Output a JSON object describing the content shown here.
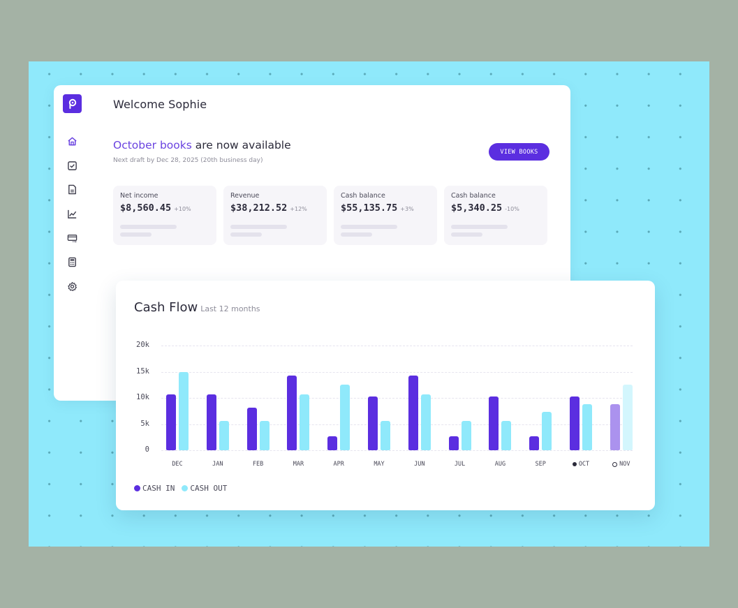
{
  "app": {
    "logo_glyph": "p",
    "brand_color": "#5b2ee0"
  },
  "sidebar": {
    "items": [
      {
        "name": "home",
        "icon": "home-icon",
        "active": true
      },
      {
        "name": "tasks",
        "icon": "checkbox-icon",
        "active": false
      },
      {
        "name": "documents",
        "icon": "document-icon",
        "active": false
      },
      {
        "name": "reports",
        "icon": "line-chart-icon",
        "active": false
      },
      {
        "name": "payments",
        "icon": "card-transfer-icon",
        "active": false
      },
      {
        "name": "calculator",
        "icon": "calculator-icon",
        "active": false
      },
      {
        "name": "settings",
        "icon": "gear-icon",
        "active": false
      }
    ]
  },
  "header": {
    "welcome": "Welcome Sophie"
  },
  "banner": {
    "title_accent": "October books",
    "title_rest": " are now available",
    "subtitle": "Next draft by Dec 28, 2025 (20th business day)",
    "button_label": "VIEW BOOKS"
  },
  "metrics": [
    {
      "label": "Net income",
      "value": "$8,560.45",
      "delta": "+10%"
    },
    {
      "label": "Revenue",
      "value": "$38,212.52",
      "delta": "+12%"
    },
    {
      "label": "Cash balance",
      "value": "$55,135.75",
      "delta": "+3%"
    },
    {
      "label": "Cash balance",
      "value": "$5,340.25",
      "delta": "-10%"
    }
  ],
  "cashflow": {
    "title": "Cash Flow",
    "subtitle": "Last 12 months",
    "legend": [
      {
        "label": "CASH IN",
        "color": "#5b2ee0"
      },
      {
        "label": "CASH OUT",
        "color": "#8fe9fb"
      }
    ]
  },
  "chart_data": {
    "type": "bar",
    "title": "Cash Flow",
    "subtitle": "Last 12 months",
    "xlabel": "",
    "ylabel": "",
    "categories": [
      "DEC",
      "JAN",
      "FEB",
      "MAR",
      "APR",
      "MAY",
      "JUN",
      "JUL",
      "AUG",
      "SEP",
      "OCT",
      "NOV"
    ],
    "category_markers": {
      "OCT": "filled-dot",
      "NOV": "ring-dot"
    },
    "series": [
      {
        "name": "CASH IN",
        "color": "#5b2ee0",
        "values": [
          10700,
          10700,
          8100,
          14300,
          2700,
          10300,
          14300,
          2700,
          10300,
          2700,
          10300,
          8800
        ]
      },
      {
        "name": "CASH OUT",
        "color": "#8fe9fb",
        "values": [
          15000,
          5600,
          5600,
          10700,
          12500,
          5600,
          10700,
          5600,
          5600,
          7300,
          8800,
          12500
        ]
      }
    ],
    "projected_categories": [
      "NOV"
    ],
    "yticks": [
      "20k",
      "15k",
      "10k",
      "5k",
      "0"
    ],
    "ylim": [
      0,
      20000
    ],
    "grid": true,
    "legend_position": "bottom-left"
  }
}
